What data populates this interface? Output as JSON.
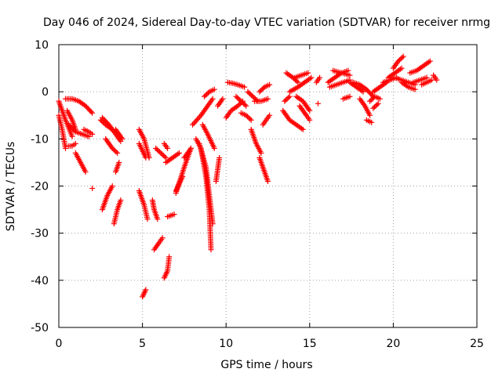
{
  "chart_data": {
    "type": "scatter",
    "title": "Day 046 of 2024, Sidereal Day-to-day VTEC variation (SDTVAR) for receiver nrmg",
    "xlabel": "GPS time / hours",
    "ylabel": "SDTVAR / TECUs",
    "xlim": [
      0,
      25
    ],
    "ylim": [
      -50,
      10
    ],
    "x_ticks": [
      "0",
      "5",
      "10",
      "15",
      "20",
      "25"
    ],
    "y_ticks": [
      "10",
      "0",
      "-10",
      "-20",
      "-30",
      "-40",
      "-50"
    ],
    "grid": true,
    "marker": "plus",
    "series": [
      {
        "name": "SDTVAR",
        "color": "#ff0000",
        "tracks": [
          {
            "x": [
              0.0,
              0.4,
              0.8
            ],
            "y": [
              -2,
              -6,
              -9.5
            ]
          },
          {
            "x": [
              0.0,
              0.2,
              0.4
            ],
            "y": [
              -5,
              -8,
              -12
            ]
          },
          {
            "x": [
              0.4,
              0.8,
              1.2,
              1.6,
              2.0
            ],
            "y": [
              -1.5,
              -1.5,
              -2,
              -3,
              -4.5
            ]
          },
          {
            "x": [
              0.5,
              0.8,
              1.0
            ],
            "y": [
              -4,
              -6,
              -8
            ]
          },
          {
            "x": [
              0.6,
              0.8,
              1.0
            ],
            "y": [
              -11.5,
              -11.5,
              -11
            ]
          },
          {
            "x": [
              0.6,
              1.0,
              1.4,
              1.8
            ],
            "y": [
              -7,
              -8.5,
              -9,
              -9.5
            ]
          },
          {
            "x": [
              1.0,
              1.3,
              1.6
            ],
            "y": [
              -13,
              -15,
              -17
            ]
          },
          {
            "x": [
              1.5,
              1.8,
              2.0
            ],
            "y": [
              -8,
              -8.5,
              -9
            ]
          },
          {
            "x": [
              2.0
            ],
            "y": [
              -20.5
            ]
          },
          {
            "x": [
              2.5,
              2.8,
              3.2
            ],
            "y": [
              -6,
              -7,
              -8
            ]
          },
          {
            "x": [
              2.6,
              3.0,
              3.4,
              3.7
            ],
            "y": [
              -5.5,
              -7,
              -9,
              -10.5
            ]
          },
          {
            "x": [
              2.8,
              3.2,
              3.5
            ],
            "y": [
              -10,
              -12,
              -13
            ]
          },
          {
            "x": [
              2.6,
              2.9,
              3.2
            ],
            "y": [
              -25,
              -22,
              -20
            ]
          },
          {
            "x": [
              3.3,
              3.5,
              3.7
            ],
            "y": [
              -28,
              -25,
              -23
            ]
          },
          {
            "x": [
              3.4,
              3.6
            ],
            "y": [
              -17,
              -15
            ]
          },
          {
            "x": [
              3.4,
              3.8
            ],
            "y": [
              -8,
              -10
            ]
          },
          {
            "x": [
              4.8,
              5.1,
              5.4
            ],
            "y": [
              -8,
              -10,
              -14
            ]
          },
          {
            "x": [
              4.8,
              5.2
            ],
            "y": [
              -11,
              -14
            ]
          },
          {
            "x": [
              4.8,
              5.1,
              5.3
            ],
            "y": [
              -21,
              -24,
              -27
            ]
          },
          {
            "x": [
              5.0,
              5.2
            ],
            "y": [
              -43.5,
              -42
            ]
          },
          {
            "x": [
              5.6,
              5.7,
              5.9
            ],
            "y": [
              -23,
              -25,
              -27
            ]
          },
          {
            "x": [
              5.7,
              6.0,
              6.2
            ],
            "y": [
              -33.5,
              -32,
              -31
            ]
          },
          {
            "x": [
              6.3,
              6.5,
              6.6
            ],
            "y": [
              -39.5,
              -38,
              -35
            ]
          },
          {
            "x": [
              5.8,
              6.1,
              6.4
            ],
            "y": [
              -12,
              -13,
              -14
            ]
          },
          {
            "x": [
              6.3,
              6.5
            ],
            "y": [
              -11,
              -12
            ]
          },
          {
            "x": [
              6.5,
              6.9
            ],
            "y": [
              -26.5,
              -26
            ]
          },
          {
            "x": [
              6.4,
              6.8,
              7.2
            ],
            "y": [
              -15,
              -14,
              -13
            ]
          },
          {
            "x": [
              7.0,
              7.5,
              7.9
            ],
            "y": [
              -21.5,
              -16,
              -12
            ]
          },
          {
            "x": [
              7.0,
              7.4
            ],
            "y": [
              -21,
              -18
            ]
          },
          {
            "x": [
              7.5,
              7.9
            ],
            "y": [
              -14,
              -12
            ]
          },
          {
            "x": [
              8.0,
              8.5,
              8.9,
              9.2
            ],
            "y": [
              -7,
              -5,
              -3,
              -1.5
            ]
          },
          {
            "x": [
              8.7,
              9.0,
              9.3
            ],
            "y": [
              -1,
              0,
              0.5
            ]
          },
          {
            "x": [
              8.2,
              8.5,
              8.8,
              9.0,
              9.1
            ],
            "y": [
              -10,
              -12,
              -18,
              -25,
              -33.5
            ]
          },
          {
            "x": [
              8.4,
              8.8,
              9.2
            ],
            "y": [
              -11,
              -16,
              -28
            ]
          },
          {
            "x": [
              8.6,
              8.9,
              9.3
            ],
            "y": [
              -7,
              -9,
              -12
            ]
          },
          {
            "x": [
              9.4,
              9.6
            ],
            "y": [
              -19,
              -14
            ]
          },
          {
            "x": [
              9.5,
              9.8
            ],
            "y": [
              -3,
              -1.5
            ]
          },
          {
            "x": [
              10.0,
              10.3,
              10.7,
              11.0
            ],
            "y": [
              -5.5,
              -4,
              -3,
              -2
            ]
          },
          {
            "x": [
              10.1,
              10.4,
              10.7,
              11.1
            ],
            "y": [
              2,
              1.8,
              1.5,
              1
            ]
          },
          {
            "x": [
              10.6,
              10.9,
              11.2
            ],
            "y": [
              -1,
              -2,
              -3
            ]
          },
          {
            "x": [
              10.9,
              11.2,
              11.5
            ],
            "y": [
              -4.5,
              -5,
              -6
            ]
          },
          {
            "x": [
              11.5,
              11.8,
              12.1
            ],
            "y": [
              -8,
              -11,
              -13
            ]
          },
          {
            "x": [
              12.0,
              12.3,
              12.5
            ],
            "y": [
              -14,
              -17,
              -19
            ]
          },
          {
            "x": [
              11.3,
              11.6,
              11.9
            ],
            "y": [
              0,
              -1,
              -2
            ]
          },
          {
            "x": [
              11.7,
              12.1,
              12.5
            ],
            "y": [
              -2,
              -2,
              -1.5
            ]
          },
          {
            "x": [
              12.2,
              12.4,
              12.6
            ],
            "y": [
              -7,
              -6,
              -5
            ]
          },
          {
            "x": [
              12.0,
              12.3,
              12.6
            ],
            "y": [
              0,
              1,
              1.5
            ]
          },
          {
            "x": [
              13.4,
              13.8,
              14.2,
              14.6
            ],
            "y": [
              -4,
              -6,
              -7,
              -8
            ]
          },
          {
            "x": [
              13.6,
              14.0,
              14.3
            ],
            "y": [
              4,
              3,
              2
            ]
          },
          {
            "x": [
              13.8,
              14.3,
              14.7,
              15.1
            ],
            "y": [
              0,
              1,
              2,
              3
            ]
          },
          {
            "x": [
              14.2,
              14.6,
              15.0
            ],
            "y": [
              -1,
              -2,
              -4
            ]
          },
          {
            "x": [
              14.4,
              14.8,
              15.0
            ],
            "y": [
              -3,
              -5,
              -6
            ]
          },
          {
            "x": [
              14.1,
              14.5,
              14.9
            ],
            "y": [
              3,
              3.5,
              4
            ]
          },
          {
            "x": [
              13.5,
              13.8
            ],
            "y": [
              -2,
              -1
            ]
          },
          {
            "x": [
              15.4,
              15.6
            ],
            "y": [
              2,
              3
            ]
          },
          {
            "x": [
              15.5
            ],
            "y": [
              -2.5
            ]
          },
          {
            "x": [
              16.1,
              16.5,
              16.9,
              17.3
            ],
            "y": [
              2,
              3,
              4,
              4.5
            ]
          },
          {
            "x": [
              16.2,
              16.6,
              17.0,
              17.4
            ],
            "y": [
              1,
              1.5,
              2,
              2.5
            ]
          },
          {
            "x": [
              16.4,
              16.9,
              17.4
            ],
            "y": [
              4.5,
              4,
              3.5
            ]
          },
          {
            "x": [
              17.0,
              17.4
            ],
            "y": [
              -1.5,
              -1
            ]
          },
          {
            "x": [
              17.4,
              17.8,
              18.2
            ],
            "y": [
              2,
              1,
              0
            ]
          },
          {
            "x": [
              17.6,
              18.0,
              18.4,
              18.8
            ],
            "y": [
              2,
              1.5,
              0.5,
              -1
            ]
          },
          {
            "x": [
              18.0,
              18.3,
              18.6
            ],
            "y": [
              -1.5,
              -3,
              -5
            ]
          },
          {
            "x": [
              18.4,
              18.7
            ],
            "y": [
              -6,
              -6.5
            ]
          },
          {
            "x": [
              18.6,
              18.9,
              19.2
            ],
            "y": [
              -2,
              -1,
              -1.5
            ]
          },
          {
            "x": [
              18.8,
              19.1
            ],
            "y": [
              -3.5,
              -2.5
            ]
          },
          {
            "x": [
              18.8,
              19.2,
              19.6
            ],
            "y": [
              0,
              1,
              2
            ]
          },
          {
            "x": [
              19.4,
              19.8,
              20.2
            ],
            "y": [
              2,
              2.5,
              3
            ]
          },
          {
            "x": [
              19.7,
              20.1,
              20.5
            ],
            "y": [
              3,
              4,
              5
            ]
          },
          {
            "x": [
              20.0,
              20.3,
              20.6
            ],
            "y": [
              5,
              6.5,
              7.5
            ]
          },
          {
            "x": [
              20.1,
              20.5,
              20.9,
              21.3
            ],
            "y": [
              3,
              2.5,
              2,
              1.5
            ]
          },
          {
            "x": [
              20.5,
              20.9,
              21.3
            ],
            "y": [
              2,
              1,
              0.5
            ]
          },
          {
            "x": [
              21.0,
              21.4,
              21.8,
              22.2
            ],
            "y": [
              4,
              4.5,
              5.5,
              6.5
            ]
          },
          {
            "x": [
              21.2,
              21.6,
              22.0
            ],
            "y": [
              2,
              2.5,
              3
            ]
          },
          {
            "x": [
              21.7,
              22.0,
              22.3
            ],
            "y": [
              1.5,
              2,
              2.5
            ]
          },
          {
            "x": [
              22.4,
              22.6
            ],
            "y": [
              3.5,
              2.5
            ]
          }
        ]
      }
    ]
  }
}
